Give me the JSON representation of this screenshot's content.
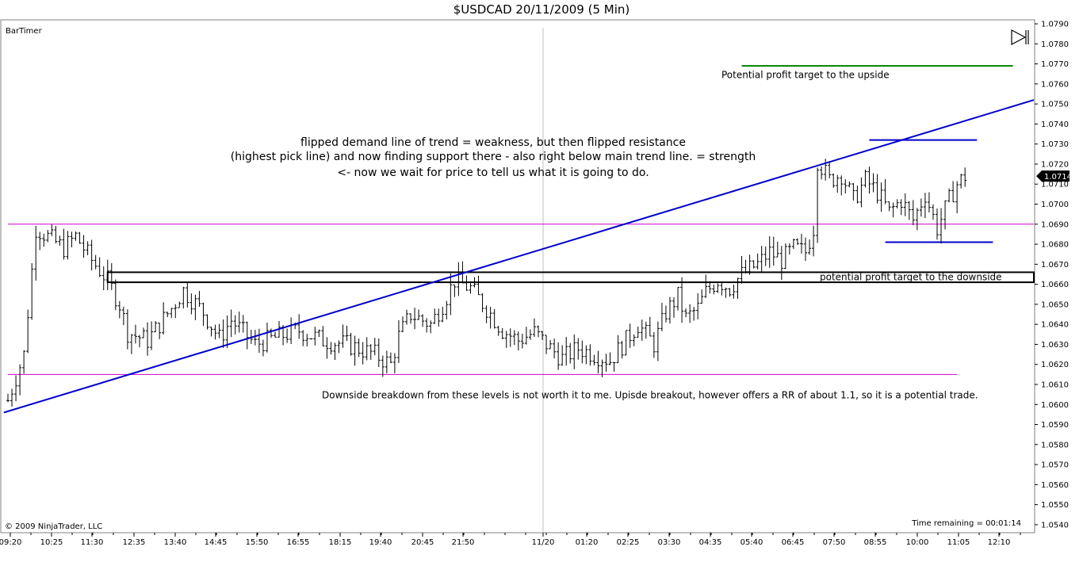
{
  "window": {
    "title": "$USDCAD  20/11/2009 (5 Min)",
    "indicator_label": "BarTimer",
    "copyright": "© 2009 NinjaTrader, LLC",
    "time_remaining": "Time remaining = 00:01:14",
    "play_icon": "play-pause-icon"
  },
  "chart_data": {
    "type": "ohlc-bar",
    "title": "$USDCAD  20/11/2009 (5 Min)",
    "symbol": "$USDCAD",
    "interval": "5 Min",
    "ylim": [
      1.0536,
      1.0792
    ],
    "y_ticks": [
      "1.0540",
      "1.0550",
      "1.0560",
      "1.0570",
      "1.0580",
      "1.0590",
      "1.0600",
      "1.0610",
      "1.0620",
      "1.0630",
      "1.0640",
      "1.0650",
      "1.0660",
      "1.0670",
      "1.0680",
      "1.0690",
      "1.0700",
      "1.0710",
      "1.0720",
      "1.0730",
      "1.0740",
      "1.0750",
      "1.0760",
      "1.0770",
      "1.0780",
      "1.0790"
    ],
    "x_tick_labels": [
      "09:20",
      "10:25",
      "11:30",
      "12:35",
      "13:40",
      "14:45",
      "15:50",
      "16:55",
      "18:15",
      "19:40",
      "20:45",
      "21:50",
      "11/20",
      "01:20",
      "02:25",
      "03:30",
      "04:35",
      "05:40",
      "06:45",
      "07:50",
      "08:55",
      "10:00",
      "11:05",
      "12:10"
    ],
    "date_divider_label": "11/20",
    "last_price": "1.0714",
    "close_path": [
      [
        0,
        1.0602
      ],
      [
        4,
        1.0625
      ],
      [
        7,
        1.0688
      ],
      [
        14,
        1.0678
      ],
      [
        17,
        1.0684
      ],
      [
        21,
        1.0672
      ],
      [
        25,
        1.0662
      ],
      [
        28,
        1.065
      ],
      [
        30,
        1.0636
      ],
      [
        35,
        1.0632
      ],
      [
        41,
        1.0648
      ],
      [
        44,
        1.0657
      ],
      [
        49,
        1.0646
      ],
      [
        53,
        1.0633
      ],
      [
        56,
        1.0642
      ],
      [
        62,
        1.063
      ],
      [
        68,
        1.0634
      ],
      [
        73,
        1.0637
      ],
      [
        79,
        1.0632
      ],
      [
        85,
        1.063
      ],
      [
        92,
        1.0625
      ],
      [
        96,
        1.062
      ],
      [
        98,
        1.0634
      ],
      [
        101,
        1.0645
      ],
      [
        106,
        1.064
      ],
      [
        109,
        1.065
      ],
      [
        112,
        1.0662
      ],
      [
        116,
        1.0658
      ],
      [
        120,
        1.0648
      ],
      [
        124,
        1.0637
      ],
      [
        128,
        1.0632
      ],
      [
        132,
        1.0636
      ],
      [
        136,
        1.0628
      ],
      [
        139,
        1.0623
      ],
      [
        143,
        1.0628
      ],
      [
        147,
        1.0625
      ],
      [
        151,
        1.0622
      ],
      [
        155,
        1.0632
      ],
      [
        158,
        1.064
      ],
      [
        162,
        1.063
      ],
      [
        165,
        1.0646
      ],
      [
        168,
        1.0654
      ],
      [
        170,
        1.0643
      ],
      [
        173,
        1.0648
      ],
      [
        175,
        1.0656
      ],
      [
        178,
        1.0662
      ],
      [
        181,
        1.0658
      ],
      [
        184,
        1.0665
      ],
      [
        188,
        1.067
      ],
      [
        191,
        1.0676
      ],
      [
        194,
        1.0672
      ],
      [
        197,
        1.0678
      ],
      [
        200,
        1.0676
      ],
      [
        202,
        1.0688
      ],
      [
        203,
        1.0722
      ],
      [
        206,
        1.0712
      ],
      [
        209,
        1.0715
      ],
      [
        212,
        1.0702
      ],
      [
        215,
        1.0712
      ],
      [
        218,
        1.0706
      ],
      [
        221,
        1.0696
      ],
      [
        224,
        1.0702
      ],
      [
        227,
        1.0692
      ],
      [
        230,
        1.0705
      ],
      [
        233,
        1.0688
      ],
      [
        236,
        1.0702
      ],
      [
        238,
        1.071
      ],
      [
        240,
        1.0714
      ]
    ],
    "horizontal_lines": [
      {
        "price": 1.069,
        "color": "#cc00cc",
        "from_bar": 0,
        "to_bar": "end"
      },
      {
        "price": 1.0615,
        "color": "#cc00cc",
        "from_bar": 0,
        "to_bar": 238
      },
      {
        "price": 1.0769,
        "color": "#008000",
        "from_bar": 184,
        "to_bar": 252
      },
      {
        "price": 1.0732,
        "color": "#0000cc",
        "from_bar": 216,
        "to_bar": 243
      },
      {
        "price": 1.0681,
        "color": "#0000cc",
        "from_bar": 220,
        "to_bar": 247
      }
    ],
    "rectangle": {
      "price_top": 1.0666,
      "price_bottom": 1.0661,
      "from_bar": 25,
      "to_bar": "end",
      "color": "#000000"
    },
    "trend_line": {
      "from_bar": -1,
      "from_price": 1.0596,
      "to_bar": "end",
      "to_price": 1.0752,
      "color": "#0000cc"
    },
    "annotations": [
      {
        "text": "Potential profit target to the upside",
        "bar": 184,
        "price": 1.0763
      },
      {
        "text": "flipped demand line of trend = weakness, but then flipped resistance",
        "bar": 125,
        "price": 1.0729
      },
      {
        "text": "(highest pick line) and now finding support there - also right below main trend line. = strength",
        "bar": 125,
        "price": 1.0722
      },
      {
        "text": "<- now we wait for price to tell us what it is going to do.",
        "bar": 125,
        "price": 1.0714
      },
      {
        "text": "potential profit target to the downside",
        "bar": 209,
        "price": 1.0662
      },
      {
        "text": "Downside breakdown from these levels is not worth it to me. Upisde breakout, however offers a RR of about 1.1, so it is a potential trade.",
        "bar": 164,
        "price": 1.0603
      }
    ]
  }
}
